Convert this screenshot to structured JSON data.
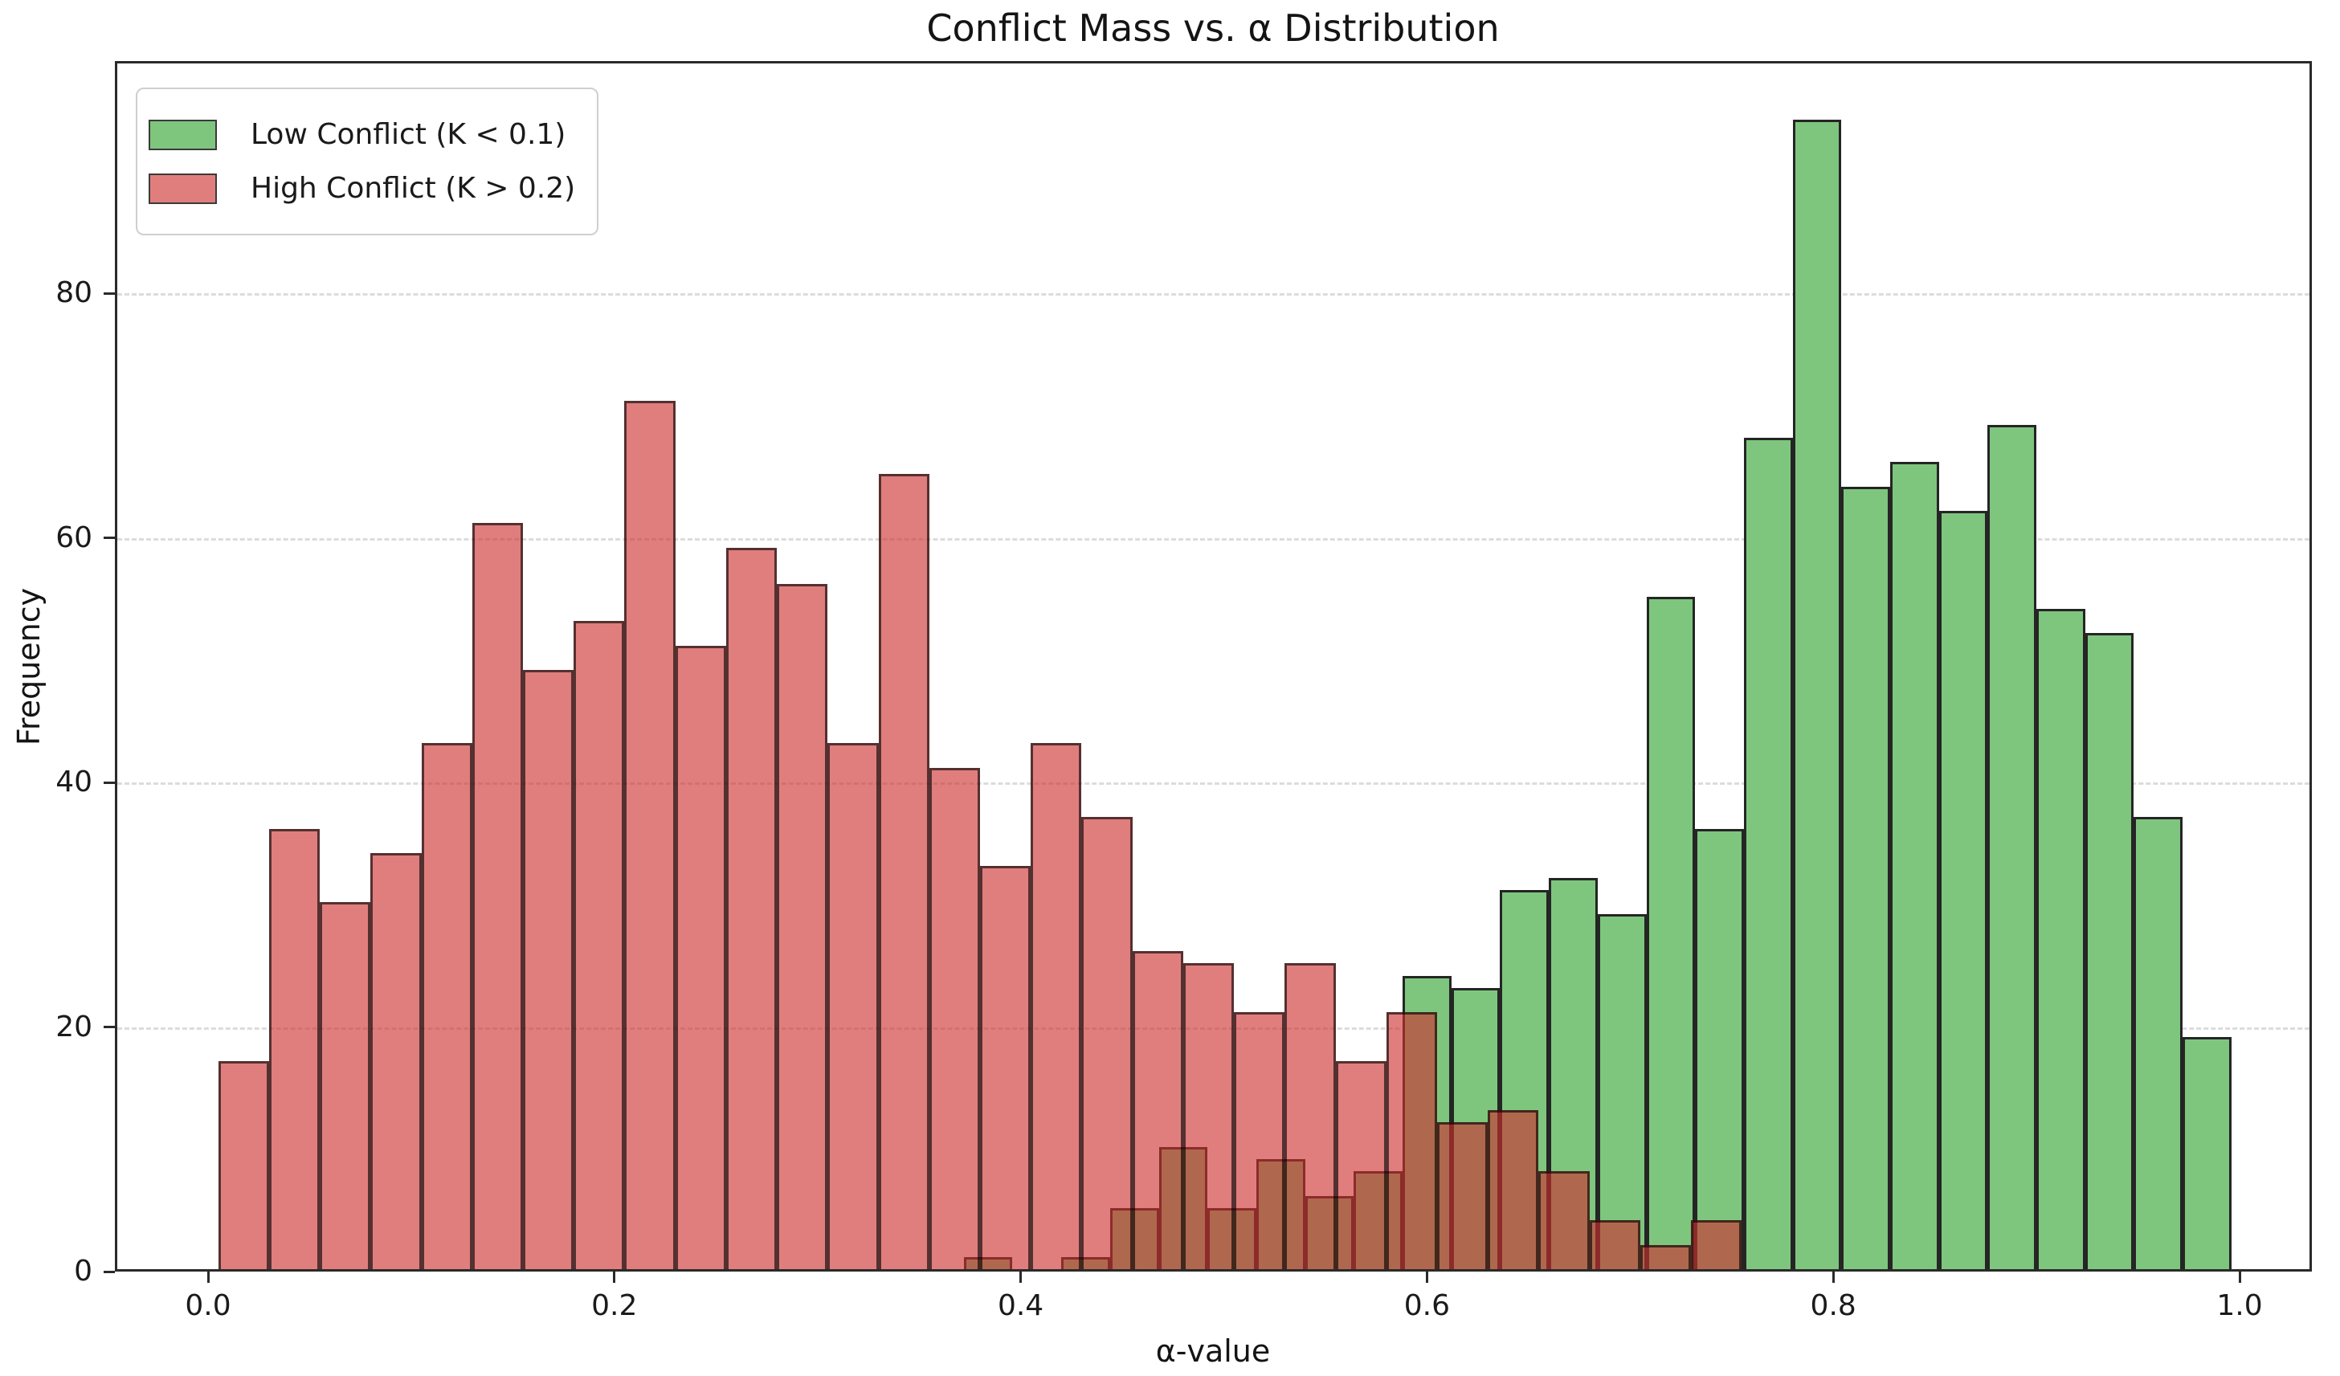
{
  "title": "Conflict Mass vs. α Distribution",
  "axes": {
    "x_label": "α-value",
    "y_label": "Frequency",
    "x_tick_labels": [
      "0.0",
      "0.2",
      "0.4",
      "0.6",
      "0.8",
      "1.0"
    ],
    "y_tick_labels": [
      "0",
      "20",
      "40",
      "60",
      "80"
    ]
  },
  "legend": {
    "position": "upper left",
    "items": [
      {
        "label": "Low Conflict (K < 0.1)",
        "swatch_color": "#7ec67e",
        "swatch_border": "#3a3a3a"
      },
      {
        "label": "High Conflict (K > 0.2)",
        "swatch_color": "rgba(205,47,47,0.62)",
        "swatch_border": "#3a3a3a"
      }
    ]
  },
  "colors": {
    "background": "#ffffff",
    "spine": "#2a2a2a",
    "grid": "#dcdcdc",
    "text": "#1a1a1a",
    "low_conflict_green": "#7ec67e",
    "high_conflict_red_overlay": "rgba(205,47,47,0.62)",
    "overlap_blend_brown": "#ae6a4c"
  },
  "chart_data": {
    "type": "bar",
    "subtype": "overlapping-histograms",
    "title": "Conflict Mass vs. α Distribution",
    "xlabel": "α-value",
    "ylabel": "Frequency",
    "xlim": [
      -0.046,
      1.036
    ],
    "ylim": [
      0,
      99
    ],
    "xticks": [
      0.0,
      0.2,
      0.4,
      0.6,
      0.8,
      1.0
    ],
    "yticks": [
      0,
      20,
      40,
      60,
      80
    ],
    "grid": "horizontal dashed",
    "legend_position": "upper left",
    "series": [
      {
        "name": "Low Conflict (K < 0.1)",
        "fill": "#7ec67e",
        "edge": "#252525",
        "opaque": true,
        "bin_start": 0.372,
        "bin_width": 0.024,
        "values": [
          1,
          0,
          1,
          5,
          10,
          5,
          9,
          6,
          8,
          24,
          23,
          31,
          32,
          29,
          55,
          36,
          68,
          94,
          64,
          66,
          62,
          69,
          54,
          52,
          37,
          19
        ]
      },
      {
        "name": "High Conflict (K > 0.2)",
        "fill": "rgba(205,47,47,0.62)",
        "edge": "rgba(0,0,0,0.62)",
        "opaque": false,
        "bin_start": 0.005,
        "bin_width": 0.025,
        "values": [
          17,
          36,
          30,
          34,
          43,
          61,
          49,
          53,
          71,
          51,
          59,
          56,
          43,
          65,
          41,
          33,
          43,
          37,
          26,
          25,
          21,
          25,
          17,
          21,
          12,
          13,
          8,
          4,
          2,
          4
        ]
      }
    ]
  }
}
